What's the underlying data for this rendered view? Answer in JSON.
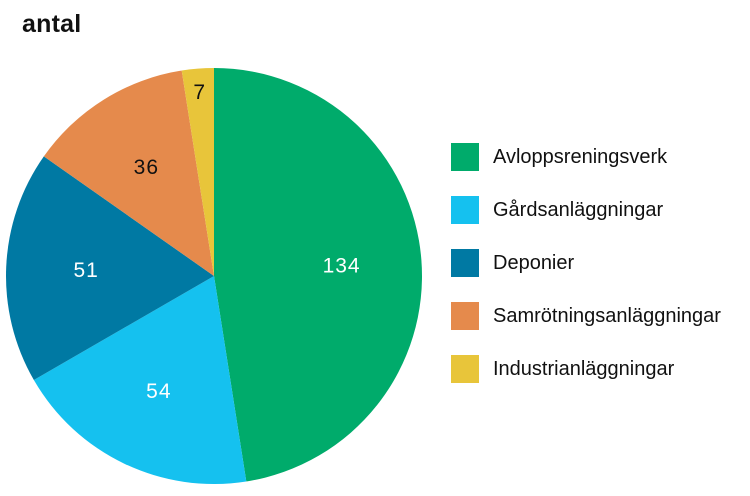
{
  "chart_data": {
    "type": "pie",
    "title": "antal",
    "start_angle_deg": 0,
    "direction": "clockwise",
    "slices": [
      {
        "label": "Avloppsreningsverk",
        "value": 134,
        "color": "#00ab6b",
        "label_color": "#ffffff"
      },
      {
        "label": "Gårdsanläggningar",
        "value": 54,
        "color": "#15c1ef",
        "label_color": "#ffffff"
      },
      {
        "label": "Deponier",
        "value": 51,
        "color": "#0079a3",
        "label_color": "#ffffff"
      },
      {
        "label": "Samrötningsanläggningar",
        "value": 36,
        "color": "#e58a4c",
        "label_color": "#111111"
      },
      {
        "label": "Industrianläggningar",
        "value": 7,
        "color": "#e8c53a",
        "label_color": "#111111"
      }
    ],
    "legend_position": "right"
  }
}
